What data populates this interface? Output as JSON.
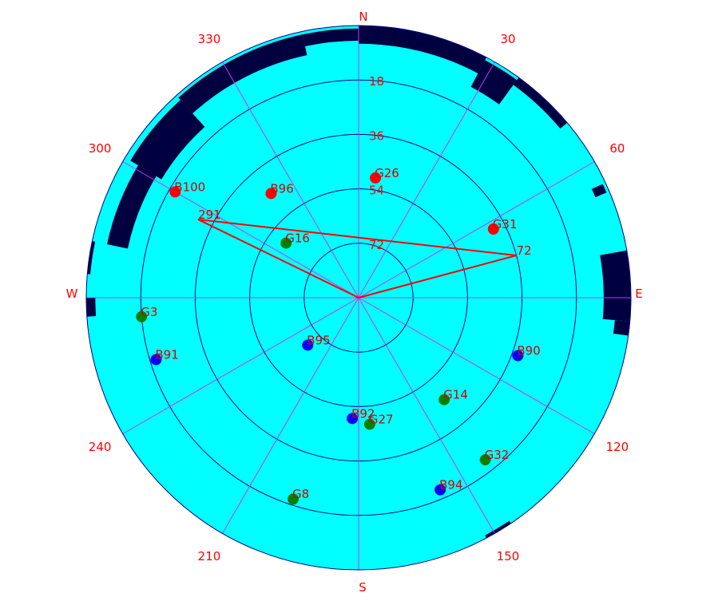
{
  "chart_data": {
    "type": "scatter",
    "projection": "polar-skyplot",
    "title": "",
    "colors": {
      "background": "#00ffff",
      "rings": "#00008b",
      "spokes": "#cc33ff",
      "labels": "#ff0000",
      "obstruction": "#000040",
      "mask_line": "#ff0000",
      "group_red": "#ff0000",
      "group_green": "#008000",
      "group_blue": "#0000ff"
    },
    "cardinal_labels": {
      "N": "N",
      "E": "E",
      "S": "S",
      "W": "W"
    },
    "azimuth_ticks": [
      30,
      60,
      120,
      150,
      210,
      240,
      300,
      330
    ],
    "elevation_rings": [
      18,
      36,
      54,
      72
    ],
    "satellites": [
      {
        "id": "G26",
        "azimuth": 8,
        "elevation": 50,
        "group": "red"
      },
      {
        "id": "G31",
        "azimuth": 63,
        "elevation": 40,
        "group": "red"
      },
      {
        "id": "B96",
        "azimuth": 320,
        "elevation": 45,
        "group": "red"
      },
      {
        "id": "B100",
        "azimuth": 300,
        "elevation": 20,
        "group": "red"
      },
      {
        "id": "G16",
        "azimuth": 307,
        "elevation": 60,
        "group": "green"
      },
      {
        "id": "G3",
        "azimuth": 265,
        "elevation": 18,
        "group": "green"
      },
      {
        "id": "G14",
        "azimuth": 140,
        "elevation": 46,
        "group": "green"
      },
      {
        "id": "G27",
        "azimuth": 175,
        "elevation": 48,
        "group": "green"
      },
      {
        "id": "G32",
        "azimuth": 142,
        "elevation": 22,
        "group": "green"
      },
      {
        "id": "G8",
        "azimuth": 198,
        "elevation": 20,
        "group": "green"
      },
      {
        "id": "B95",
        "azimuth": 227,
        "elevation": 67,
        "group": "blue"
      },
      {
        "id": "B91",
        "azimuth": 253,
        "elevation": 20,
        "group": "blue"
      },
      {
        "id": "B90",
        "azimuth": 110,
        "elevation": 34,
        "group": "blue"
      },
      {
        "id": "B92",
        "azimuth": 183,
        "elevation": 50,
        "group": "blue"
      },
      {
        "id": "B94",
        "azimuth": 157,
        "elevation": 21,
        "group": "blue"
      }
    ],
    "mask_lines": [
      {
        "label": "291",
        "azimuth": 296,
        "elevation": 31
      },
      {
        "label": "72",
        "azimuth": 75,
        "elevation": 36
      }
    ],
    "obstructions": [
      {
        "az_from": 282,
        "az_to": 301,
        "el_from": 5,
        "el_to": 12
      },
      {
        "az_from": 301,
        "az_to": 318,
        "el_from": 2,
        "el_to": 14
      },
      {
        "az_from": 318,
        "az_to": 348,
        "el_from": 1,
        "el_to": 8
      },
      {
        "az_from": 348,
        "az_to": 360,
        "el_from": 1,
        "el_to": 5
      },
      {
        "az_from": 0,
        "az_to": 28,
        "el_from": 0,
        "el_to": 6
      },
      {
        "az_from": 28,
        "az_to": 36,
        "el_from": 1,
        "el_to": 11
      },
      {
        "az_from": 36,
        "az_to": 50,
        "el_from": 0,
        "el_to": 3
      },
      {
        "az_from": 65,
        "az_to": 67,
        "el_from": 1,
        "el_to": 5
      },
      {
        "az_from": 80,
        "az_to": 95,
        "el_from": 0,
        "el_to": 9
      },
      {
        "az_from": 95,
        "az_to": 98,
        "el_from": 0,
        "el_to": 5
      },
      {
        "az_from": 146,
        "az_to": 152,
        "el_from": 0,
        "el_to": 1
      },
      {
        "az_from": 266,
        "az_to": 270,
        "el_from": 0,
        "el_to": 3
      },
      {
        "az_from": 275,
        "az_to": 282,
        "el_from": 0,
        "el_to": 1
      }
    ]
  }
}
